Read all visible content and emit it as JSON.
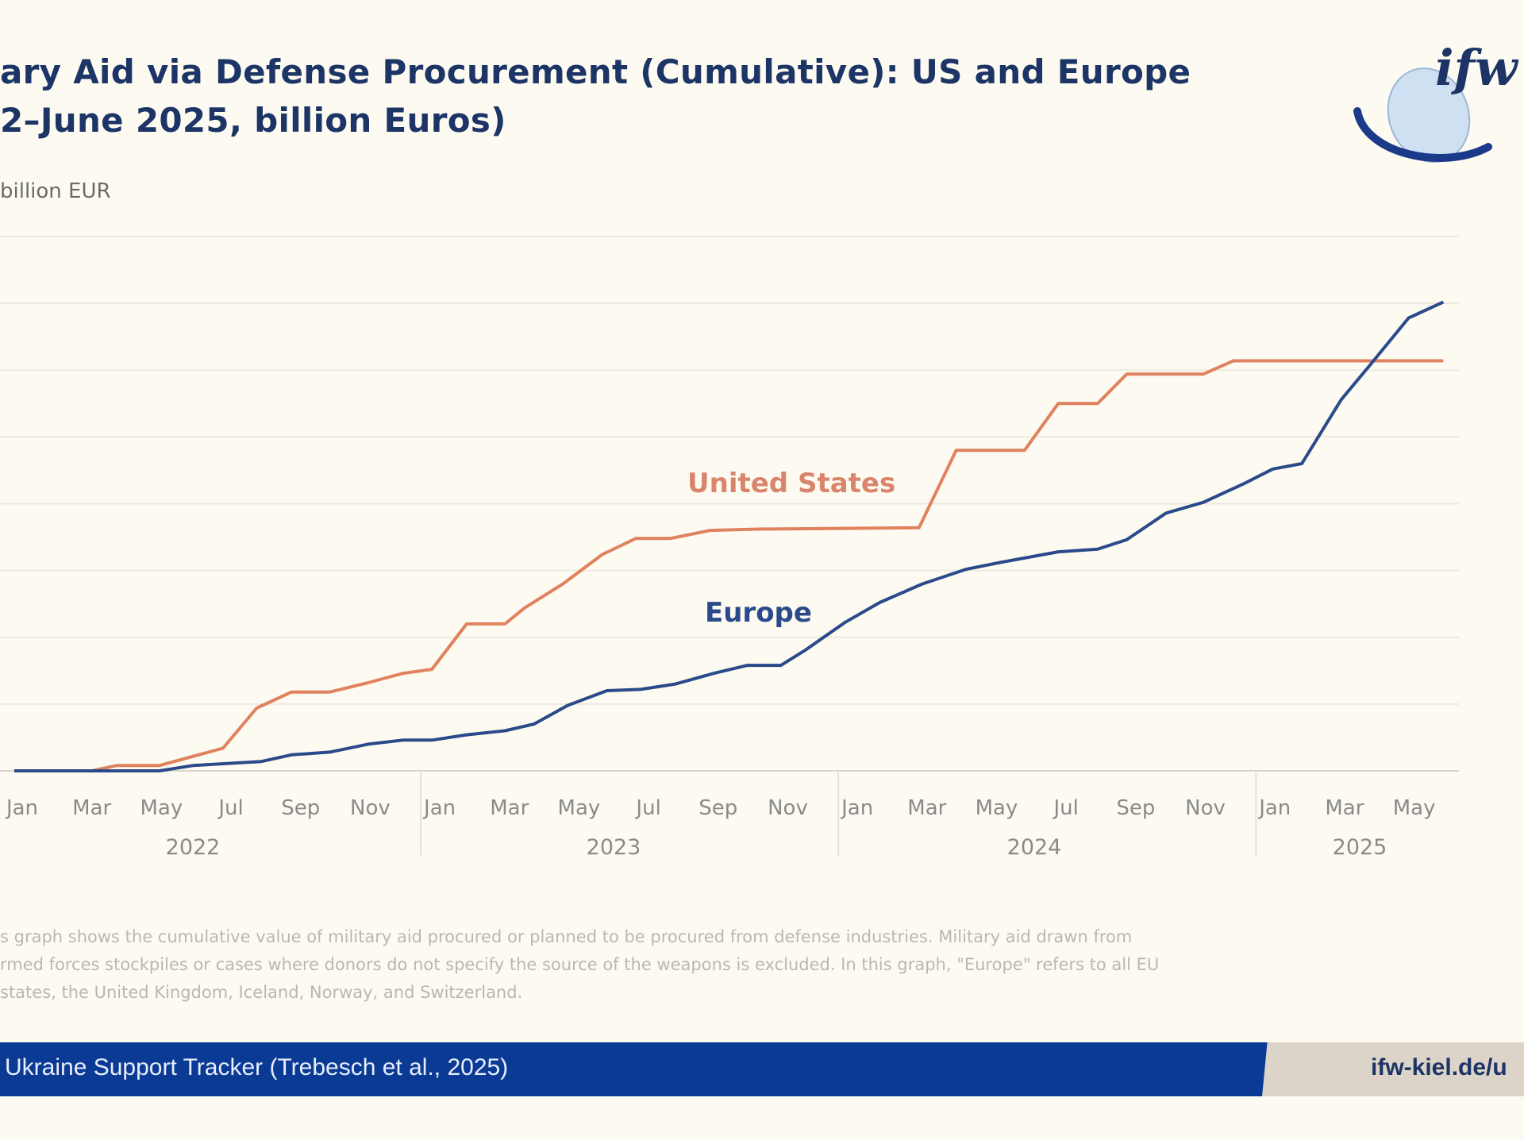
{
  "header": {
    "title_line1": "ary Aid via Defense Procurement (Cumulative): US and Europe",
    "title_line2": "2–June 2025, billion Euros)",
    "logo_text": "ifw"
  },
  "notes": [
    "s graph shows the cumulative value of military aid procured or planned to be procured from defense industries. Military aid drawn from",
    "rmed forces stockpiles or cases where donors do not specify the source of the weapons is excluded. In this graph, \"Europe\" refers to all EU",
    "states, the United Kingdom, Iceland, Norway, and Switzerland."
  ],
  "footer": {
    "source": "Ukraine Support Tracker (Trebesch et al., 2025)",
    "url": "ifw-kiel.de/u"
  },
  "colors": {
    "us": "#e0825e",
    "europe": "#2b4a8b",
    "title": "#1c3566",
    "footer_bar": "#0b3a94"
  },
  "chart_data": {
    "type": "line",
    "ylabel": "billion EUR",
    "ylim": [
      0,
      40
    ],
    "grid": true,
    "x_range": [
      "2022-01-01",
      "2025-06-30"
    ],
    "month_ticks": [
      {
        "label": "Jan",
        "date": "2022-01"
      },
      {
        "label": "Mar",
        "date": "2022-03"
      },
      {
        "label": "May",
        "date": "2022-05"
      },
      {
        "label": "Jul",
        "date": "2022-07"
      },
      {
        "label": "Sep",
        "date": "2022-09"
      },
      {
        "label": "Nov",
        "date": "2022-11"
      },
      {
        "label": "Jan",
        "date": "2023-01"
      },
      {
        "label": "Mar",
        "date": "2023-03"
      },
      {
        "label": "May",
        "date": "2023-05"
      },
      {
        "label": "Jul",
        "date": "2023-07"
      },
      {
        "label": "Sep",
        "date": "2023-09"
      },
      {
        "label": "Nov",
        "date": "2023-11"
      },
      {
        "label": "Jan",
        "date": "2024-01"
      },
      {
        "label": "Mar",
        "date": "2024-03"
      },
      {
        "label": "May",
        "date": "2024-05"
      },
      {
        "label": "Jul",
        "date": "2024-07"
      },
      {
        "label": "Sep",
        "date": "2024-09"
      },
      {
        "label": "Nov",
        "date": "2024-11"
      },
      {
        "label": "Jan",
        "date": "2025-01"
      },
      {
        "label": "Mar",
        "date": "2025-03"
      },
      {
        "label": "May",
        "date": "2025-05"
      }
    ],
    "year_ticks": [
      "2022",
      "2023",
      "2024",
      "2025"
    ],
    "series": [
      {
        "name": "United States",
        "color": "#e0825e",
        "points": [
          [
            "2022-01-01",
            0
          ],
          [
            "2022-03-08",
            0
          ],
          [
            "2022-03-29",
            0.4
          ],
          [
            "2022-05-06",
            0.4
          ],
          [
            "2022-07-01",
            1.7
          ],
          [
            "2022-07-30",
            4.7
          ],
          [
            "2022-08-30",
            5.9
          ],
          [
            "2022-10-03",
            5.9
          ],
          [
            "2022-11-06",
            6.6
          ],
          [
            "2022-12-06",
            7.3
          ],
          [
            "2023-01-01",
            7.6
          ],
          [
            "2023-01-31",
            11.0
          ],
          [
            "2023-03-04",
            11.0
          ],
          [
            "2023-03-21",
            12.2
          ],
          [
            "2023-04-24",
            14.0
          ],
          [
            "2023-05-28",
            16.2
          ],
          [
            "2023-06-27",
            17.4
          ],
          [
            "2023-07-27",
            17.4
          ],
          [
            "2023-08-31",
            18.0
          ],
          [
            "2023-10-12",
            18.1
          ],
          [
            "2024-03-01",
            18.2
          ],
          [
            "2024-04-03",
            24.0
          ],
          [
            "2024-06-02",
            24.0
          ],
          [
            "2024-07-01",
            27.5
          ],
          [
            "2024-08-05",
            27.5
          ],
          [
            "2024-08-30",
            29.7
          ],
          [
            "2024-11-06",
            29.7
          ],
          [
            "2024-12-02",
            30.7
          ],
          [
            "2025-06-03",
            30.7
          ]
        ]
      },
      {
        "name": "Europe",
        "color": "#2b4a8b",
        "points": [
          [
            "2022-01-01",
            0
          ],
          [
            "2022-05-06",
            0
          ],
          [
            "2022-06-05",
            0.4
          ],
          [
            "2022-08-04",
            0.7
          ],
          [
            "2022-08-30",
            1.2
          ],
          [
            "2022-10-03",
            1.4
          ],
          [
            "2022-11-06",
            2.0
          ],
          [
            "2022-12-06",
            2.3
          ],
          [
            "2023-01-01",
            2.3
          ],
          [
            "2023-01-31",
            2.7
          ],
          [
            "2023-03-04",
            3.0
          ],
          [
            "2023-03-29",
            3.5
          ],
          [
            "2023-04-28",
            4.9
          ],
          [
            "2023-06-02",
            6.0
          ],
          [
            "2023-07-01",
            6.1
          ],
          [
            "2023-08-01",
            6.5
          ],
          [
            "2023-09-04",
            7.3
          ],
          [
            "2023-10-03",
            7.9
          ],
          [
            "2023-11-02",
            7.9
          ],
          [
            "2023-11-24",
            9.1
          ],
          [
            "2023-12-27",
            11.1
          ],
          [
            "2024-01-27",
            12.6
          ],
          [
            "2024-03-04",
            14.0
          ],
          [
            "2024-04-12",
            15.1
          ],
          [
            "2024-05-11",
            15.6
          ],
          [
            "2024-07-01",
            16.4
          ],
          [
            "2024-08-05",
            16.6
          ],
          [
            "2024-08-30",
            17.3
          ],
          [
            "2024-10-04",
            19.3
          ],
          [
            "2024-11-06",
            20.1
          ],
          [
            "2024-12-11",
            21.5
          ],
          [
            "2025-01-06",
            22.6
          ],
          [
            "2025-02-01",
            23.0
          ],
          [
            "2025-03-05",
            27.8
          ],
          [
            "2025-03-30",
            30.4
          ],
          [
            "2025-05-03",
            33.9
          ],
          [
            "2025-06-03",
            35.1
          ]
        ]
      }
    ]
  }
}
